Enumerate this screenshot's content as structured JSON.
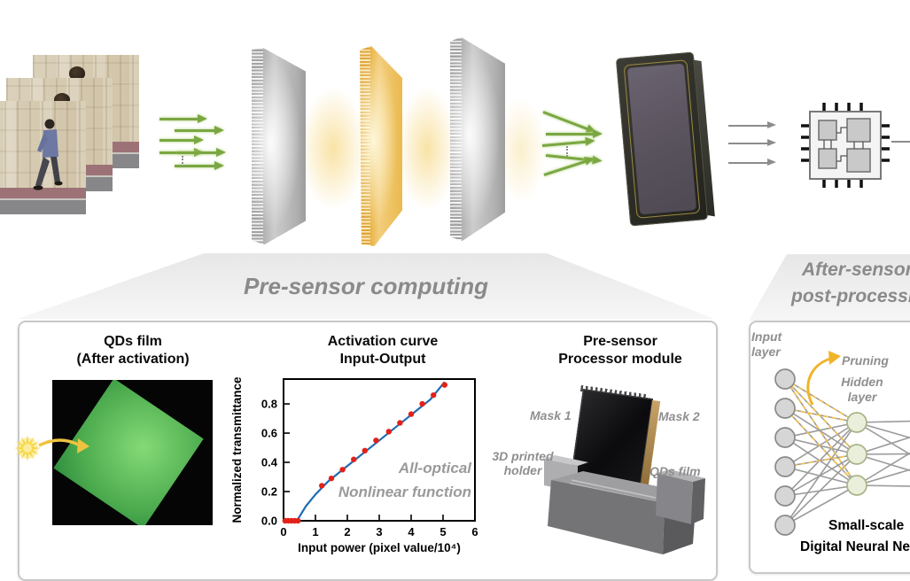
{
  "figure": {
    "stage_labels": {
      "pre_sensor": "Pre-sensor computing",
      "after_sensor_line1": "After-sensor",
      "after_sensor_line2": "post-processing"
    },
    "qds": {
      "title_line1": "QDs film",
      "title_line2": "(After activation)"
    },
    "activation": {
      "title_line1": "Activation curve",
      "title_line2": "Input-Output",
      "annotation_line1": "All-optical",
      "annotation_line2": "Nonlinear function"
    },
    "module": {
      "title_line1": "Pre-sensor",
      "title_line2": "Processor module",
      "mask1": "Mask 1",
      "mask2": "Mask 2",
      "holder_line1": "3D printed",
      "holder_line2": "holder",
      "qds_film": "QDs film"
    },
    "nn": {
      "input_line1": "Input",
      "input_line2": "layer",
      "pruning": "Pruning",
      "hidden_line1": "Hidden",
      "hidden_line2": "layer",
      "caption_line1": "Small-scale",
      "caption_line2": "Digital Neural Network",
      "input_nodes": 6,
      "hidden_nodes": 3
    },
    "icons": {
      "light-arrow": "green right arrow (light propagation)",
      "signal-arrow": "gray right arrow (electronic readout)",
      "diffractive-mask": "striped slab (phase mask)",
      "qd-layer": "gold striped slab (quantum-dot activation layer)",
      "image-sensor": "dark sensor plate with gold frame",
      "processor-chip": "chip with four cores and pins",
      "starburst": "yellow excitation burst",
      "pruning-arrow": "curved yellow arrow"
    },
    "colors": {
      "light_green_arrow": "#7aa742",
      "signal_gray_arrow": "#8c8c8c",
      "qd_panel_yellow": "#eec05a",
      "mask_panel_gray": "#b5b5b5",
      "stage_label_gray": "#8a8a8a",
      "curve_blue": "#1f6cb3",
      "data_point_red": "#e32119",
      "pruning_yellow": "#f0b429",
      "qd_film_green": "#5cbf5a"
    }
  },
  "chart_data": {
    "type": "scatter",
    "title": "Activation curve Input-Output",
    "xlabel": "Input power (pixel value/10⁴)",
    "ylabel": "Normalized transmittance",
    "xlim": [
      0,
      6
    ],
    "ylim": [
      0,
      0.97
    ],
    "xticks": [
      0,
      1,
      2,
      3,
      4,
      5,
      6
    ],
    "yticks": [
      0.0,
      0.2,
      0.4,
      0.6,
      0.8
    ],
    "grid": false,
    "legend": false,
    "annotation": "All-optical Nonlinear function",
    "series": [
      {
        "name": "measured points",
        "type": "scatter",
        "color": "#e32119",
        "points": [
          [
            0.05,
            0
          ],
          [
            0.15,
            0
          ],
          [
            0.25,
            0
          ],
          [
            0.35,
            0
          ],
          [
            0.45,
            0
          ],
          [
            1.2,
            0.24
          ],
          [
            1.5,
            0.29
          ],
          [
            1.85,
            0.35
          ],
          [
            2.2,
            0.42
          ],
          [
            2.55,
            0.48
          ],
          [
            2.9,
            0.55
          ],
          [
            3.3,
            0.61
          ],
          [
            3.65,
            0.67
          ],
          [
            4.0,
            0.73
          ],
          [
            4.35,
            0.8
          ],
          [
            4.7,
            0.86
          ],
          [
            5.05,
            0.93
          ]
        ]
      },
      {
        "name": "fit curve",
        "type": "line",
        "color": "#1f6cb3",
        "points": [
          [
            0.05,
            0
          ],
          [
            0.42,
            0
          ],
          [
            0.7,
            0.1
          ],
          [
            1.0,
            0.18
          ],
          [
            1.4,
            0.27
          ],
          [
            1.8,
            0.34
          ],
          [
            2.2,
            0.41
          ],
          [
            2.6,
            0.48
          ],
          [
            3.0,
            0.55
          ],
          [
            3.4,
            0.62
          ],
          [
            3.8,
            0.69
          ],
          [
            4.2,
            0.76
          ],
          [
            4.6,
            0.83
          ],
          [
            5.05,
            0.95
          ]
        ]
      }
    ]
  }
}
